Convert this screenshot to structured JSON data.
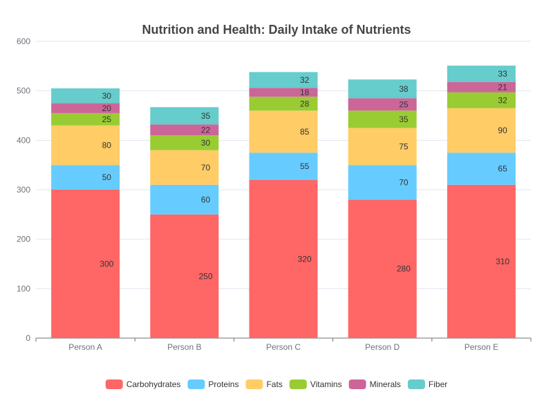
{
  "chart_data": {
    "type": "bar",
    "stacked": true,
    "title": "Nutrition and Health: Daily Intake of Nutrients",
    "categories": [
      "Person A",
      "Person B",
      "Person C",
      "Person D",
      "Person E"
    ],
    "series": [
      {
        "name": "Carbohydrates",
        "color": "#ff6666",
        "values": [
          300,
          250,
          320,
          280,
          310
        ]
      },
      {
        "name": "Proteins",
        "color": "#66ccff",
        "values": [
          50,
          60,
          55,
          70,
          65
        ]
      },
      {
        "name": "Fats",
        "color": "#ffcc66",
        "values": [
          80,
          70,
          85,
          75,
          90
        ]
      },
      {
        "name": "Vitamins",
        "color": "#99cc33",
        "values": [
          25,
          30,
          28,
          35,
          32
        ]
      },
      {
        "name": "Minerals",
        "color": "#cc6699",
        "values": [
          20,
          22,
          18,
          25,
          21
        ]
      },
      {
        "name": "Fiber",
        "color": "#66cccc",
        "values": [
          30,
          35,
          32,
          38,
          33
        ]
      }
    ],
    "ylim": [
      0,
      600
    ],
    "yticks": [
      0,
      100,
      200,
      300,
      400,
      500,
      600
    ],
    "xlabel": "",
    "ylabel": "",
    "grid": true,
    "legend_position": "bottom"
  }
}
